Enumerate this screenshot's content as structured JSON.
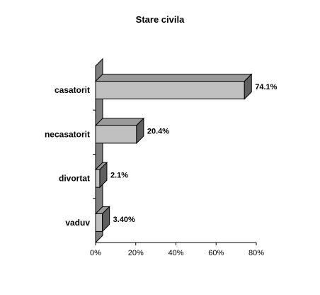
{
  "chart_data": {
    "type": "bar",
    "orientation": "horizontal",
    "title": "Stare civila",
    "categories": [
      "casatorit",
      "necasatorit",
      "divortat",
      "vaduv"
    ],
    "values": [
      74.1,
      20.4,
      2.1,
      3.4
    ],
    "value_labels": [
      "74.1%",
      "20.4%",
      "2.1%",
      "3.40%"
    ],
    "xlim": [
      0,
      80
    ],
    "xticks": [
      0,
      20,
      40,
      60,
      80
    ],
    "xtick_labels": [
      "0%",
      "20%",
      "40%",
      "60%",
      "80%"
    ],
    "xlabel": "",
    "ylabel": "",
    "grid": false,
    "legend": "none",
    "style": "3d",
    "colors": {
      "bar_front": "#c0c0c0",
      "bar_side": "#606060",
      "bar_top": "#9a9a9a",
      "wall": "#808080",
      "axis": "#000000"
    }
  }
}
